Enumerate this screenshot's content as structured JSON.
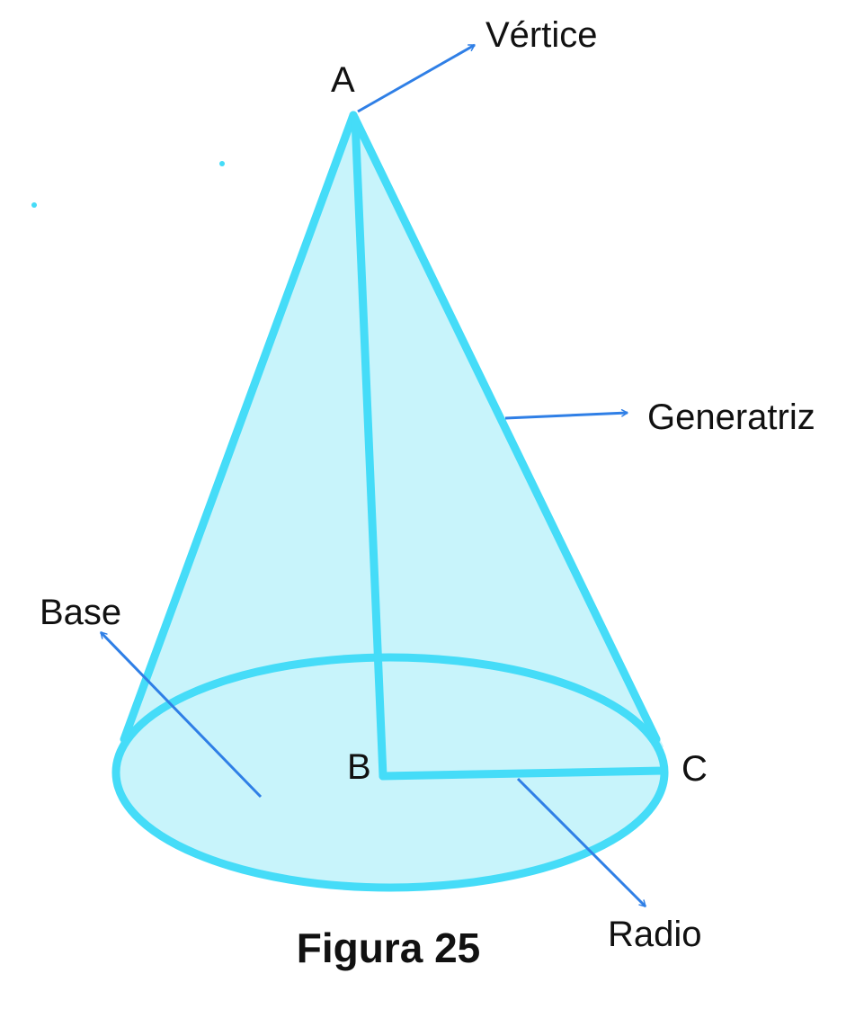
{
  "labels": {
    "vertex_point": "A",
    "center_point": "B",
    "edge_point": "C",
    "vertice": "Vértice",
    "generatriz": "Generatriz",
    "base": "Base",
    "radio": "Radio"
  },
  "caption": "Figura 25",
  "colors": {
    "fill": "#c8f4fb",
    "stroke": "#45dcf8",
    "arrow": "#2f7fe6",
    "text": "#111111"
  }
}
